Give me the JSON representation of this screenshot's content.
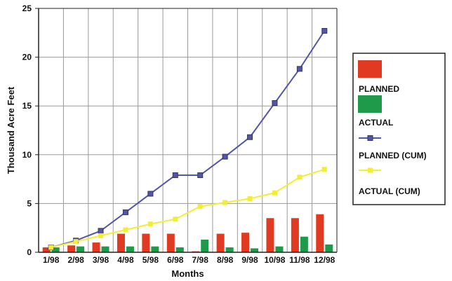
{
  "chart_data": {
    "type": "bar",
    "categories": [
      "1/98",
      "2/98",
      "3/98",
      "4/98",
      "5/98",
      "6/98",
      "7/98",
      "8/98",
      "9/98",
      "10/98",
      "11/98",
      "12/98"
    ],
    "xlabel": "Months",
    "ylabel": "Thousand Acre Feet",
    "ylim": [
      0,
      25
    ],
    "yticks": [
      0,
      5,
      10,
      15,
      20,
      25
    ],
    "grid": true,
    "legend_position": "right",
    "series": [
      {
        "name": "PLANNED",
        "kind": "bar",
        "color": "#e03a22",
        "values": [
          0.5,
          0.7,
          1.0,
          1.9,
          1.9,
          1.9,
          0.1,
          1.9,
          2.0,
          3.5,
          3.5,
          3.9
        ]
      },
      {
        "name": "ACTUAL",
        "kind": "bar",
        "color": "#1f9a4a",
        "values": [
          0.5,
          0.6,
          0.6,
          0.6,
          0.6,
          0.5,
          1.3,
          0.5,
          0.4,
          0.6,
          1.6,
          0.8
        ]
      },
      {
        "name": "PLANNED (CUM)",
        "kind": "line",
        "color": "#5555a8",
        "values": [
          0.5,
          1.2,
          2.2,
          4.1,
          6.0,
          7.9,
          7.9,
          9.8,
          11.8,
          15.3,
          18.8,
          22.7
        ]
      },
      {
        "name": "ACTUAL (CUM)",
        "kind": "line",
        "color": "#f2ee33",
        "values": [
          0.5,
          1.1,
          1.7,
          2.3,
          2.9,
          3.4,
          4.7,
          5.1,
          5.5,
          6.1,
          7.7,
          8.5
        ]
      }
    ]
  }
}
